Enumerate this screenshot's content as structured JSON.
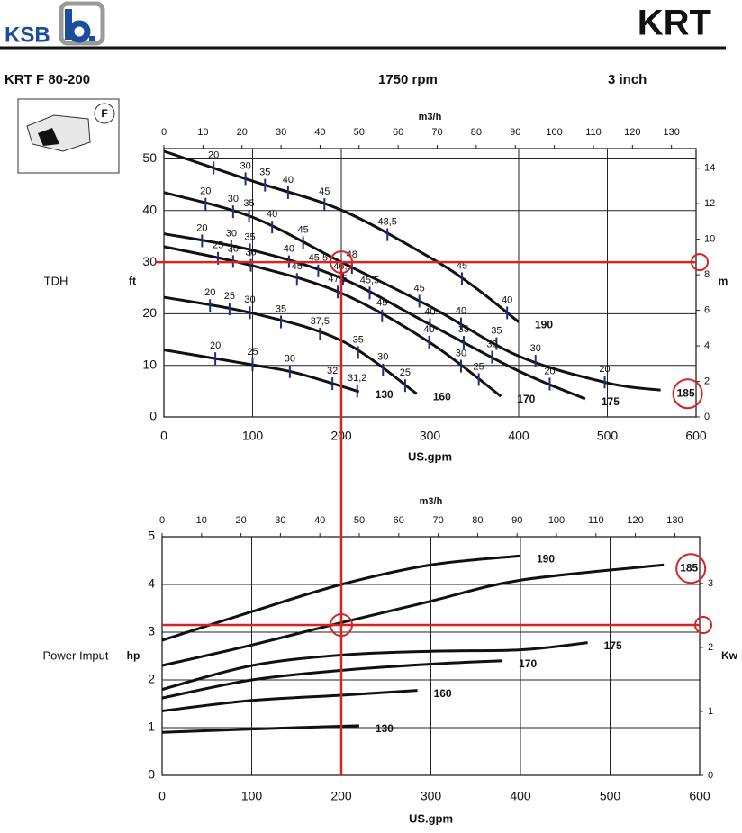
{
  "header": {
    "brand": "KSB",
    "title": "KRT",
    "model": "KRT F 80-200",
    "speed": "1750 rpm",
    "size": "3 inch",
    "icon_label": "F"
  },
  "chart_data": [
    {
      "type": "line",
      "ylabel": "TDH",
      "yunit": "ft",
      "y2label": "m",
      "xlabel": "US.gpm",
      "x2label": "m3/h",
      "xlim": [
        0,
        600
      ],
      "xticks": [
        0,
        100,
        200,
        300,
        400,
        500,
        600
      ],
      "x2lim": [
        0,
        136.3
      ],
      "x2ticks": [
        0,
        10,
        20,
        30,
        40,
        50,
        60,
        70,
        80,
        90,
        100,
        110,
        120,
        130
      ],
      "ylim": [
        0,
        52
      ],
      "yticks": [
        0,
        10,
        20,
        30,
        40,
        50
      ],
      "y2lim": [
        0,
        15.1
      ],
      "y2ticks": [
        0,
        2,
        4,
        6,
        8,
        10,
        12,
        14
      ],
      "grid": true,
      "efficiency_color": "#1f2f7a",
      "highlight_color": "#d42424",
      "highlighted_series": 1,
      "operating_point": {
        "x": 200,
        "y": 30
      },
      "series": [
        {
          "name": "190",
          "color": "#111111",
          "x": [
            0,
            100,
            200,
            300,
            350,
            400
          ],
          "values": [
            51.5,
            45.7,
            40.1,
            30.9,
            25.2,
            18.4
          ],
          "efficiency": [
            {
              "x": 56,
              "eff": 20
            },
            {
              "x": 92,
              "eff": 30
            },
            {
              "x": 114,
              "eff": 35
            },
            {
              "x": 140,
              "eff": 40
            },
            {
              "x": 181,
              "eff": 45
            },
            {
              "x": 252,
              "eff": 48.5,
              "eff_label": "48,5"
            },
            {
              "x": 336,
              "eff": 45
            },
            {
              "x": 387,
              "eff": 40
            }
          ]
        },
        {
          "name": "185",
          "color": "#111111",
          "x": [
            0,
            100,
            200,
            300,
            400,
            500,
            560
          ],
          "values": [
            43.5,
            38.7,
            30,
            21.4,
            11.8,
            6.6,
            5.2
          ],
          "efficiency": [
            {
              "x": 47,
              "eff": 20
            },
            {
              "x": 78,
              "eff": 30
            },
            {
              "x": 96,
              "eff": 35
            },
            {
              "x": 122,
              "eff": 40
            },
            {
              "x": 157,
              "eff": 45
            },
            {
              "x": 212,
              "eff": 48
            },
            {
              "x": 288,
              "eff": 45
            },
            {
              "x": 335,
              "eff": 40
            },
            {
              "x": 375,
              "eff": 35
            },
            {
              "x": 419,
              "eff": 30
            },
            {
              "x": 497,
              "eff": 20
            }
          ]
        },
        {
          "name": "175",
          "color": "#111111",
          "x": [
            0,
            100,
            200,
            300,
            400,
            475
          ],
          "values": [
            35.5,
            32.3,
            26.9,
            17.9,
            8.9,
            3.5
          ],
          "efficiency": [
            {
              "x": 43,
              "eff": 20
            },
            {
              "x": 76,
              "eff": 30
            },
            {
              "x": 97,
              "eff": 35
            },
            {
              "x": 141,
              "eff": 40
            },
            {
              "x": 174,
              "eff": 45.5,
              "eff_label": "45,5"
            },
            {
              "x": 202,
              "eff": 46.5,
              "eff_label": "46,5"
            },
            {
              "x": 232,
              "eff": 45.5,
              "eff_label": "45,5"
            },
            {
              "x": 300,
              "eff": 40
            },
            {
              "x": 338,
              "eff": 35
            },
            {
              "x": 370,
              "eff": 30
            },
            {
              "x": 435,
              "eff": 20
            }
          ]
        },
        {
          "name": "170",
          "color": "#111111",
          "x": [
            0,
            100,
            200,
            300,
            380
          ],
          "values": [
            33,
            29.3,
            24,
            14.4,
            4
          ],
          "efficiency": [
            {
              "x": 61,
              "eff": 25
            },
            {
              "x": 78,
              "eff": 30
            },
            {
              "x": 98,
              "eff": 36
            },
            {
              "x": 150,
              "eff": 45
            },
            {
              "x": 196,
              "eff": 47.5,
              "eff_label": "47,5"
            },
            {
              "x": 246,
              "eff": 45
            },
            {
              "x": 299,
              "eff": 40
            },
            {
              "x": 335,
              "eff": 30
            },
            {
              "x": 355,
              "eff": 25
            }
          ]
        },
        {
          "name": "160",
          "color": "#111111",
          "x": [
            0,
            100,
            200,
            285
          ],
          "values": [
            23.2,
            20.1,
            14.8,
            4.5
          ],
          "efficiency": [
            {
              "x": 52,
              "eff": 20
            },
            {
              "x": 74,
              "eff": 25
            },
            {
              "x": 97,
              "eff": 30
            },
            {
              "x": 132,
              "eff": 35
            },
            {
              "x": 176,
              "eff": 37.5,
              "eff_label": "37,5"
            },
            {
              "x": 219,
              "eff": 35
            },
            {
              "x": 247,
              "eff": 30
            },
            {
              "x": 272,
              "eff": 25
            }
          ]
        },
        {
          "name": "130",
          "color": "#111111",
          "x": [
            0,
            100,
            150,
            220
          ],
          "values": [
            13,
            10.1,
            8.5,
            4.9
          ],
          "efficiency": [
            {
              "x": 58,
              "eff": 20
            },
            {
              "x": 100,
              "eff": 25
            },
            {
              "x": 142,
              "eff": 30
            },
            {
              "x": 190,
              "eff": 32
            },
            {
              "x": 218,
              "eff": 31.2,
              "eff_label": "31,2"
            }
          ]
        }
      ]
    },
    {
      "type": "line",
      "ylabel": "Power Imput",
      "yunit": "hp",
      "y2label": "Kw",
      "xlabel": "US.gpm",
      "x2label": "m3/h",
      "xlim": [
        0,
        600
      ],
      "xticks": [
        0,
        100,
        200,
        300,
        400,
        500,
        600
      ],
      "x2lim": [
        0,
        136.3
      ],
      "x2ticks": [
        0,
        10,
        20,
        30,
        40,
        50,
        60,
        70,
        80,
        90,
        100,
        110,
        120,
        130
      ],
      "ylim": [
        0,
        5
      ],
      "yticks": [
        0,
        1,
        2,
        3,
        4,
        5
      ],
      "y2lim": [
        0,
        3.73
      ],
      "y2ticks": [
        0,
        1,
        2,
        3
      ],
      "grid": true,
      "highlight_color": "#d42424",
      "highlighted_series": 1,
      "operating_point": {
        "x": 200,
        "y": 3.15
      },
      "series": [
        {
          "name": "190",
          "color": "#111111",
          "x": [
            0,
            100,
            200,
            300,
            400
          ],
          "values": [
            2.83,
            3.43,
            4.0,
            4.41,
            4.6
          ]
        },
        {
          "name": "185",
          "color": "#111111",
          "x": [
            0,
            100,
            200,
            300,
            400,
            560
          ],
          "values": [
            2.3,
            2.73,
            3.2,
            3.65,
            4.09,
            4.41
          ]
        },
        {
          "name": "175",
          "color": "#111111",
          "x": [
            0,
            100,
            200,
            300,
            400,
            475
          ],
          "values": [
            1.8,
            2.3,
            2.52,
            2.6,
            2.63,
            2.78
          ]
        },
        {
          "name": "170",
          "color": "#111111",
          "x": [
            0,
            100,
            200,
            300,
            380
          ],
          "values": [
            1.62,
            2.0,
            2.2,
            2.33,
            2.4
          ]
        },
        {
          "name": "160",
          "color": "#111111",
          "x": [
            0,
            100,
            200,
            285
          ],
          "values": [
            1.35,
            1.57,
            1.68,
            1.78
          ]
        },
        {
          "name": "130",
          "color": "#111111",
          "x": [
            0,
            100,
            220
          ],
          "values": [
            0.9,
            0.97,
            1.04
          ]
        }
      ]
    }
  ]
}
